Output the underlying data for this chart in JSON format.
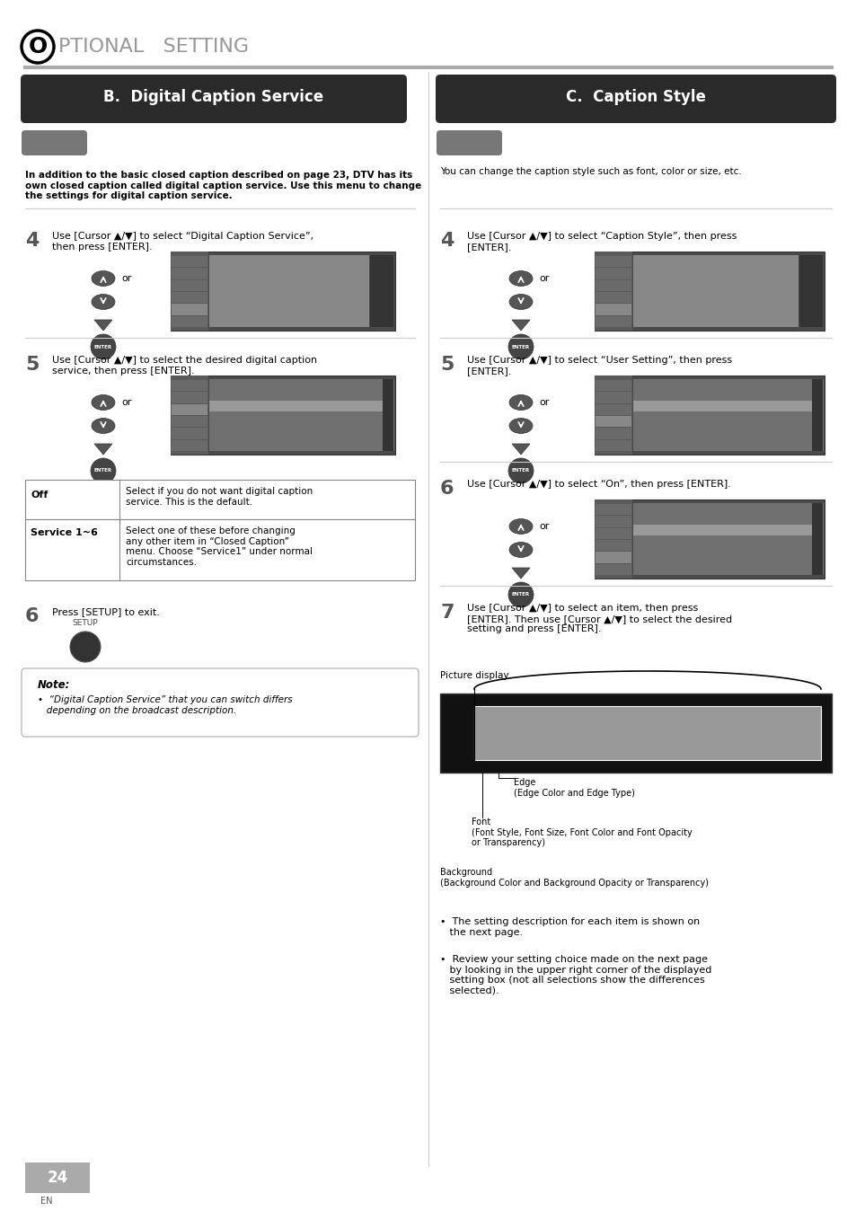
{
  "bg_color": "#ffffff",
  "page_width": 9.54,
  "page_height": 13.48,
  "header_text": "PTIONAL   SETTING",
  "header_O": "O",
  "header_line_color": "#aaaaaa",
  "left_section_title": "B.  Digital Caption Service",
  "right_section_title": "C.  Caption Style",
  "section_title_bg": "#2a2a2a",
  "section_title_color": "#ffffff",
  "left_intro": "In addition to the basic closed caption described on page 23, DTV has its\nown closed caption called digital caption service. Use this menu to change\nthe settings for digital caption service.",
  "right_intro": "You can change the caption style such as font, color or size, etc.",
  "left_step4_text": "Use [Cursor ▲/▼] to select “Digital Caption Service”,\nthen press [ENTER].",
  "left_step5_text": "Use [Cursor ▲/▼] to select the desired digital caption\nservice, then press [ENTER].",
  "left_step6_text": "Press [SETUP] to exit.",
  "left_note_title": "Note:",
  "left_note_text": "•  “Digital Caption Service” that you can switch differs\n   depending on the broadcast description.",
  "table_row1_label": "Off",
  "table_row1_text": "Select if you do not want digital caption\nservice. This is the default.",
  "table_row2_label": "Service 1~6",
  "table_row2_text": "Select one of these before changing\nany other item in “Closed Caption”\nmenu. Choose “Service1” under normal\ncircumstances.",
  "right_step4_text": "Use [Cursor ▲/▼] to select “Caption Style”, then press\n[ENTER].",
  "right_step5_text": "Use [Cursor ▲/▼] to select “User Setting”, then press\n[ENTER].",
  "right_step6_text": "Use [Cursor ▲/▼] to select “On”, then press [ENTER].",
  "right_step7_text": "Use [Cursor ▲/▼] to select an item, then press\n[ENTER]. Then use [Cursor ▲/▼] to select the desired\nsetting and press [ENTER].",
  "picture_display_label": "Picture display",
  "edge_label": "Edge\n(Edge Color and Edge Type)",
  "font_label": "Font\n(Font Style, Font Size, Font Color and Font Opacity\nor Transparency)",
  "background_label": "Background\n(Background Color and Background Opacity or Transparency)",
  "bullet1": "•  The setting description for each item is shown on\n   the next page.",
  "bullet2": "•  Review your setting choice made on the next page\n   by looking in the upper right corner of the displayed\n   setting box (not all selections show the differences\n   selected).",
  "page_number": "24",
  "page_lang": "EN",
  "step_num_color": "#555555",
  "divider_color": "#cccccc"
}
